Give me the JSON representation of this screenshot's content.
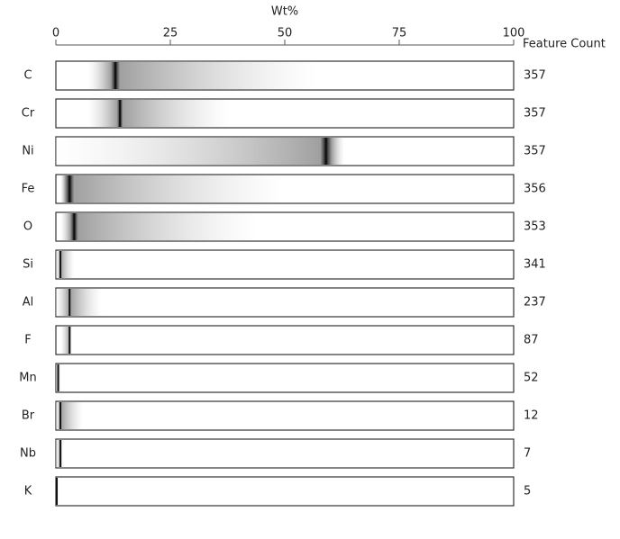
{
  "chart_data": {
    "type": "strip",
    "x_label": "Wt%",
    "count_label": "Feature Count",
    "xlim": [
      0,
      100
    ],
    "xticks": [
      0,
      25,
      50,
      75,
      100
    ],
    "categories": [
      "C",
      "Cr",
      "Ni",
      "Fe",
      "O",
      "Si",
      "Al",
      "F",
      "Mn",
      "Br",
      "Nb",
      "K"
    ],
    "min": [
      7,
      7,
      0,
      1,
      1,
      0,
      0,
      1,
      0,
      0,
      0,
      0
    ],
    "mode": [
      13,
      14,
      59,
      3,
      4,
      1,
      3,
      3,
      0.5,
      1,
      1,
      0.2
    ],
    "max": [
      57,
      38,
      63,
      50,
      44,
      4,
      10,
      3.5,
      1,
      6,
      1.5,
      0.5
    ],
    "counts": [
      357,
      357,
      357,
      356,
      353,
      341,
      237,
      87,
      52,
      12,
      7,
      5
    ],
    "color": "#111111"
  }
}
